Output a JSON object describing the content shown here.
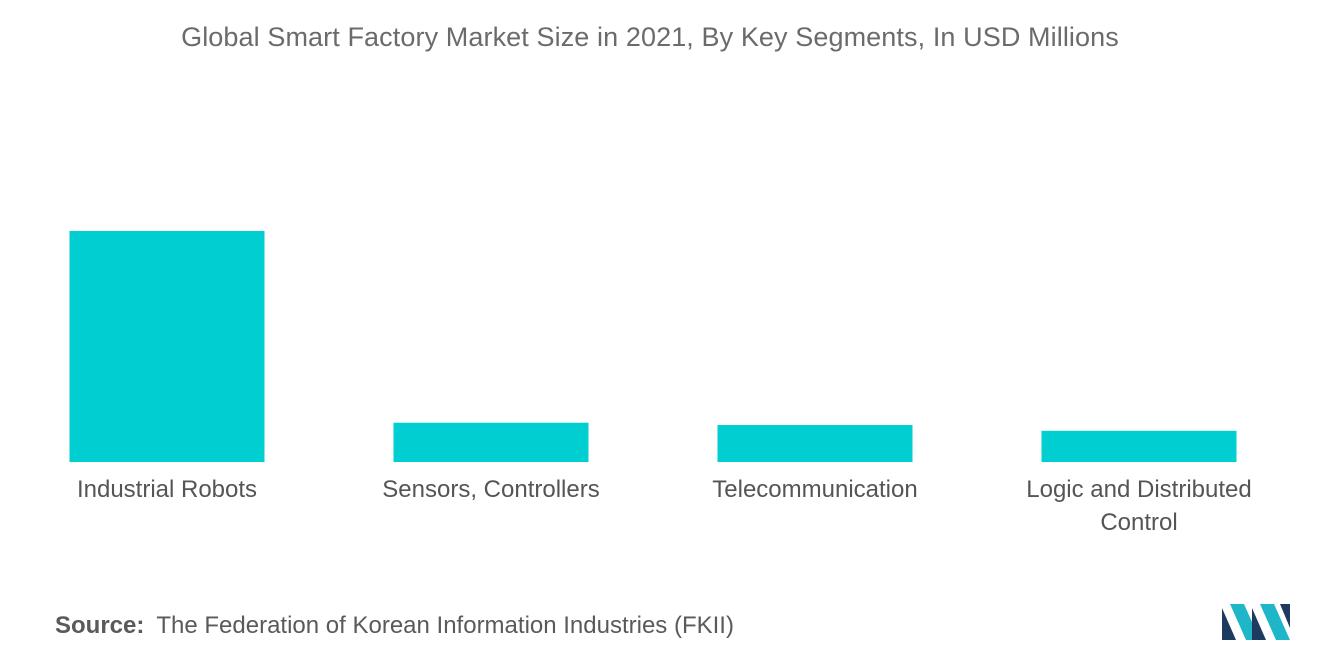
{
  "chart_data": {
    "type": "bar",
    "title": "Global Smart Factory Market Size in 2021, By Key Segments, In USD Millions",
    "categories": [
      [
        "Industrial Robots"
      ],
      [
        "Sensors, Controllers"
      ],
      [
        "Telecommunication"
      ],
      [
        "Logic and Distributed",
        "Control"
      ]
    ],
    "values": [
      100,
      17,
      16,
      13.5
    ],
    "ylim": [
      0,
      100
    ],
    "xlabel": "",
    "ylabel": "",
    "grid": false,
    "axes_visible": false,
    "bar_color": "#00CED1"
  },
  "source": {
    "label": "Source:",
    "text": "The Federation of Korean Information Industries (FKII)"
  },
  "logo": {
    "icon": "mordor-intelligence-logo-icon",
    "colors": [
      "#1f3a5f",
      "#20b6c9"
    ]
  }
}
